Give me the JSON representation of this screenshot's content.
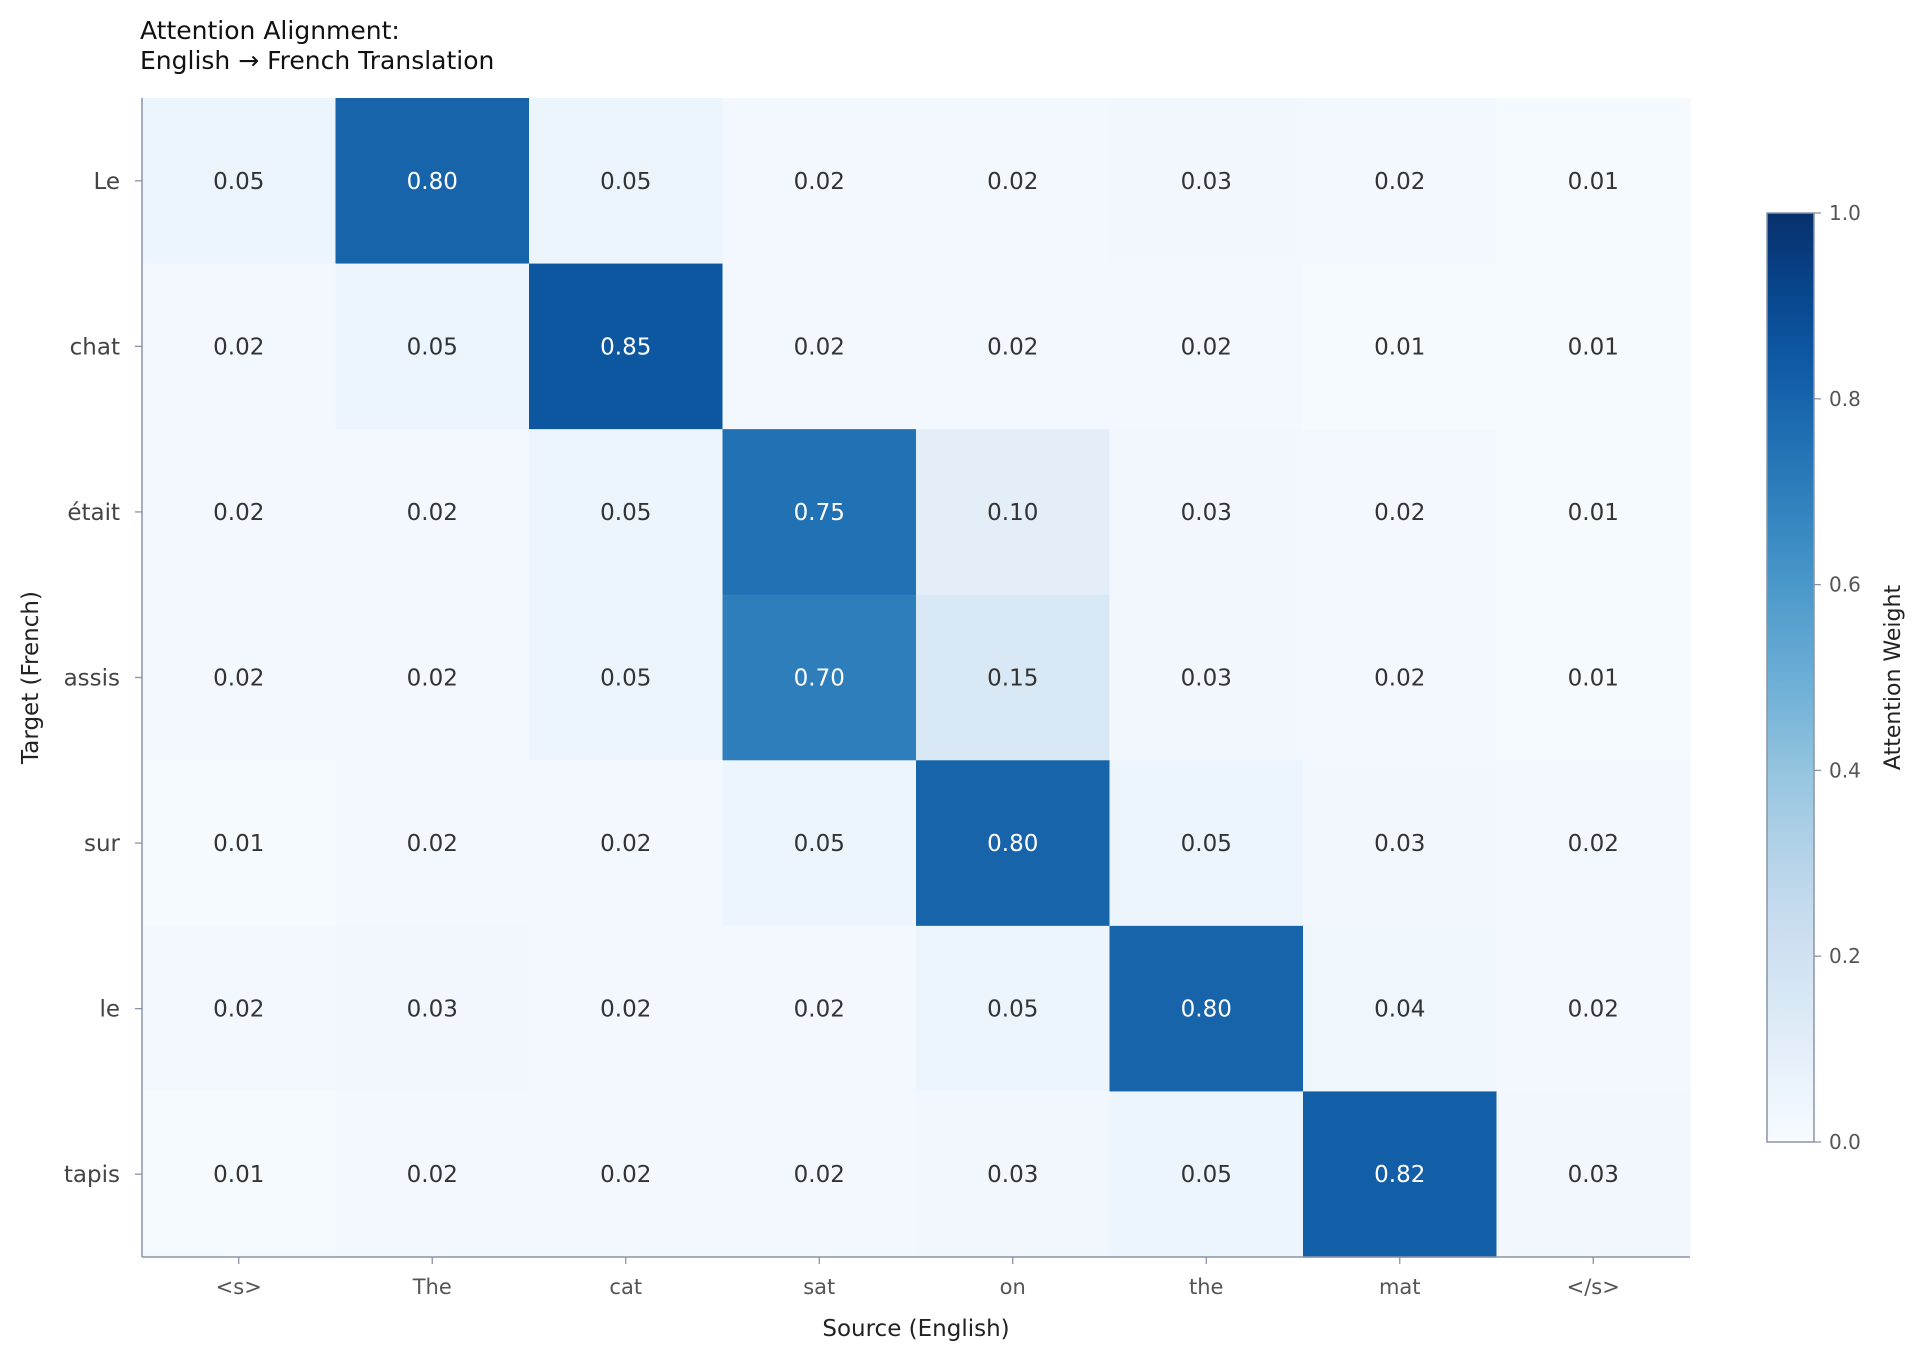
{
  "chart_data": {
    "type": "heatmap",
    "title": "Attention Alignment:\nEnglish → French Translation",
    "xlabel": "Source (English)",
    "ylabel": "Target (French)",
    "x_categories": [
      "<s>",
      "The",
      "cat",
      "sat",
      "on",
      "the",
      "mat",
      "</s>"
    ],
    "y_categories": [
      "Le",
      "chat",
      "était",
      "assis",
      "sur",
      "le",
      "tapis"
    ],
    "values": [
      [
        0.05,
        0.8,
        0.05,
        0.02,
        0.02,
        0.03,
        0.02,
        0.01
      ],
      [
        0.02,
        0.05,
        0.85,
        0.02,
        0.02,
        0.02,
        0.01,
        0.01
      ],
      [
        0.02,
        0.02,
        0.05,
        0.75,
        0.1,
        0.03,
        0.02,
        0.01
      ],
      [
        0.02,
        0.02,
        0.05,
        0.7,
        0.15,
        0.03,
        0.02,
        0.01
      ],
      [
        0.01,
        0.02,
        0.02,
        0.05,
        0.8,
        0.05,
        0.03,
        0.02
      ],
      [
        0.02,
        0.03,
        0.02,
        0.02,
        0.05,
        0.8,
        0.04,
        0.02
      ],
      [
        0.01,
        0.02,
        0.02,
        0.02,
        0.03,
        0.05,
        0.82,
        0.03
      ]
    ],
    "colorbar": {
      "label": "Attention Weight",
      "range": [
        0,
        1
      ],
      "ticks": [
        0.0,
        0.2,
        0.4,
        0.6,
        0.8,
        1.0
      ],
      "colormap": "Blues"
    },
    "grid": false,
    "legend": "none"
  }
}
